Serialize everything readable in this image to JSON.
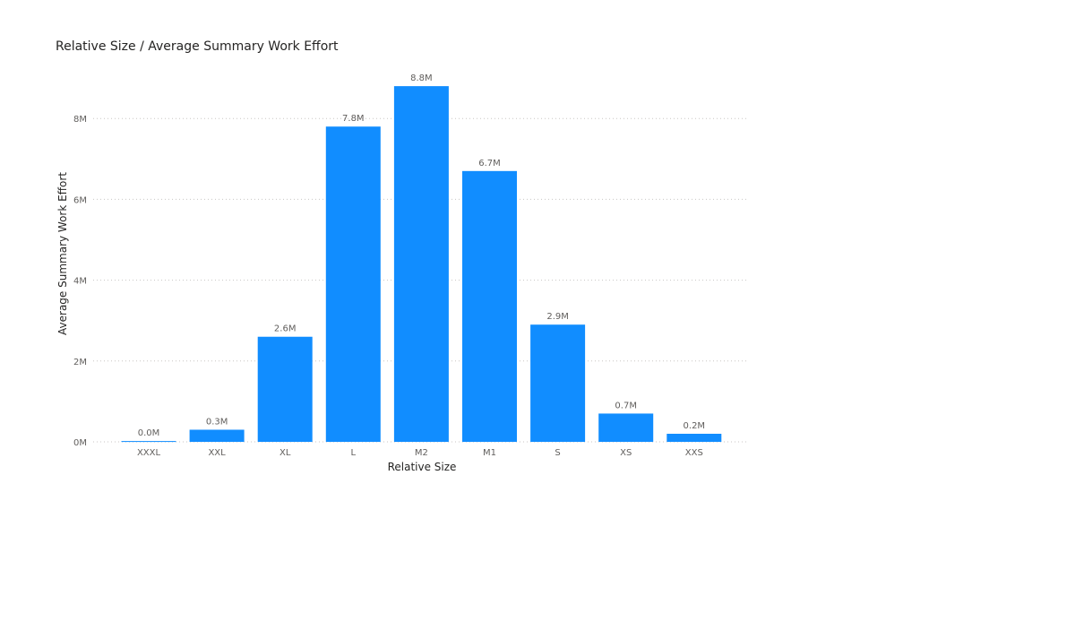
{
  "chart_data": {
    "type": "bar",
    "title": "Relative Size / Average Summary Work Effort",
    "xlabel": "Relative Size",
    "ylabel": "Average Summary Work Effort",
    "categories": [
      "XXXL",
      "XXL",
      "XL",
      "L",
      "M2",
      "M1",
      "S",
      "XS",
      "XXS"
    ],
    "values": [
      0.02,
      0.3,
      2.6,
      7.8,
      8.8,
      6.7,
      2.9,
      0.7,
      0.2
    ],
    "data_labels": [
      "0.0M",
      "0.3M",
      "2.6M",
      "7.8M",
      "8.8M",
      "6.7M",
      "2.9M",
      "0.7M",
      "0.2M"
    ],
    "unit": "M",
    "ylim": [
      0,
      9.2
    ],
    "yticks": [
      0,
      2,
      4,
      6,
      8
    ],
    "ytick_labels": [
      "0M",
      "2M",
      "4M",
      "6M",
      "8M"
    ],
    "grid": true,
    "bar_color": "#118DFF"
  }
}
